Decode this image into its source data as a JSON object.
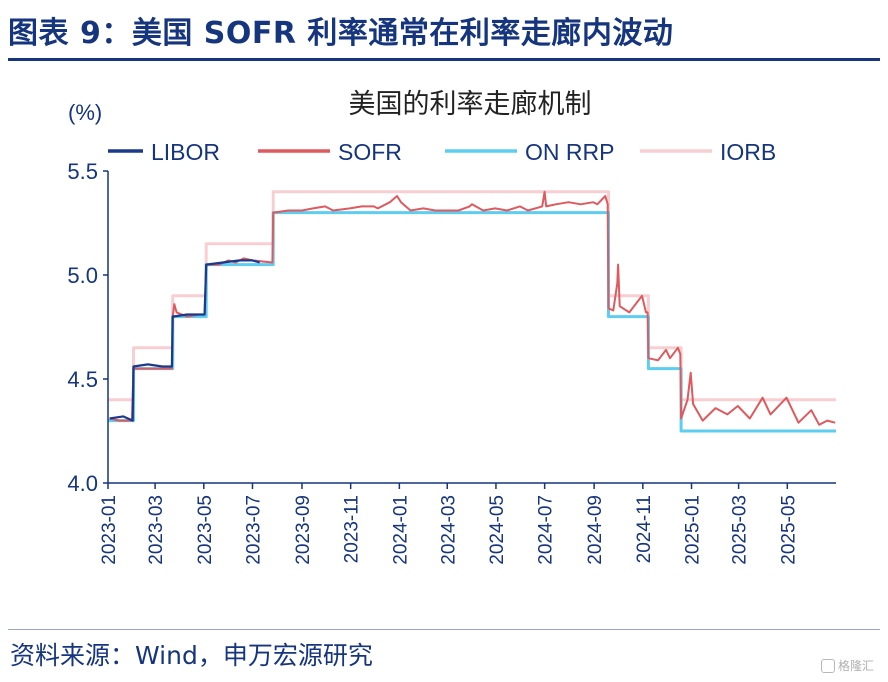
{
  "header": {
    "figure_title": "图表 9：美国 SOFR 利率通常在利率走廊内波动"
  },
  "footer": {
    "source": "资料来源：Wind，申万宏源研究",
    "watermark": "格隆汇"
  },
  "colors": {
    "libor": "#1b3a8c",
    "sofr": "#de5a5e",
    "onrrp": "#5dcdf2",
    "iorb": "#f7cfd2",
    "text": "#16357f"
  },
  "chart_data": {
    "type": "line",
    "title": "美国的利率走廊机制",
    "ylabel": "(%)",
    "xlabel": "",
    "ylim": [
      4.0,
      5.5
    ],
    "yticks": [
      "4.0",
      "4.5",
      "5.0",
      "5.5"
    ],
    "xlim": [
      "2023-01-01",
      "2025-07-01"
    ],
    "xticks": [
      "2023-01",
      "2023-03",
      "2023-05",
      "2023-07",
      "2023-09",
      "2023-11",
      "2024-01",
      "2024-03",
      "2024-05",
      "2024-07",
      "2024-09",
      "2024-11",
      "2025-01",
      "2025-03",
      "2025-05"
    ],
    "legend_position": "top",
    "series": [
      {
        "name": "LIBOR",
        "key": "libor",
        "step": false,
        "points": [
          [
            "2023-01-03",
            4.31
          ],
          [
            "2023-01-20",
            4.32
          ],
          [
            "2023-02-01",
            4.3
          ],
          [
            "2023-02-02",
            4.56
          ],
          [
            "2023-02-20",
            4.57
          ],
          [
            "2023-03-10",
            4.56
          ],
          [
            "2023-03-22",
            4.56
          ],
          [
            "2023-03-23",
            4.8
          ],
          [
            "2023-04-10",
            4.81
          ],
          [
            "2023-05-02",
            4.81
          ],
          [
            "2023-05-04",
            5.05
          ],
          [
            "2023-05-25",
            5.06
          ],
          [
            "2023-06-15",
            5.07
          ],
          [
            "2023-07-01",
            5.07
          ],
          [
            "2023-07-10",
            5.06
          ]
        ]
      },
      {
        "name": "SOFR",
        "key": "sofr",
        "step": false,
        "points": [
          [
            "2023-01-03",
            4.31
          ],
          [
            "2023-01-15",
            4.3
          ],
          [
            "2023-01-31",
            4.3
          ],
          [
            "2023-02-02",
            4.55
          ],
          [
            "2023-02-15",
            4.55
          ],
          [
            "2023-03-01",
            4.55
          ],
          [
            "2023-03-15",
            4.55
          ],
          [
            "2023-03-22",
            4.55
          ],
          [
            "2023-03-23",
            4.8
          ],
          [
            "2023-03-25",
            4.86
          ],
          [
            "2023-03-28",
            4.82
          ],
          [
            "2023-04-10",
            4.8
          ],
          [
            "2023-04-25",
            4.81
          ],
          [
            "2023-05-02",
            4.81
          ],
          [
            "2023-05-04",
            5.05
          ],
          [
            "2023-05-20",
            5.05
          ],
          [
            "2023-06-01",
            5.07
          ],
          [
            "2023-06-10",
            5.06
          ],
          [
            "2023-06-20",
            5.08
          ],
          [
            "2023-07-01",
            5.07
          ],
          [
            "2023-07-26",
            5.06
          ],
          [
            "2023-07-27",
            5.3
          ],
          [
            "2023-08-15",
            5.31
          ],
          [
            "2023-09-01",
            5.31
          ],
          [
            "2023-09-15",
            5.32
          ],
          [
            "2023-09-30",
            5.33
          ],
          [
            "2023-10-10",
            5.31
          ],
          [
            "2023-10-31",
            5.32
          ],
          [
            "2023-11-15",
            5.33
          ],
          [
            "2023-11-30",
            5.33
          ],
          [
            "2023-12-05",
            5.32
          ],
          [
            "2023-12-20",
            5.35
          ],
          [
            "2023-12-29",
            5.38
          ],
          [
            "2024-01-03",
            5.35
          ],
          [
            "2024-01-15",
            5.31
          ],
          [
            "2024-01-31",
            5.32
          ],
          [
            "2024-02-15",
            5.31
          ],
          [
            "2024-02-29",
            5.31
          ],
          [
            "2024-03-15",
            5.31
          ],
          [
            "2024-03-29",
            5.33
          ],
          [
            "2024-04-01",
            5.34
          ],
          [
            "2024-04-15",
            5.31
          ],
          [
            "2024-04-30",
            5.32
          ],
          [
            "2024-05-15",
            5.31
          ],
          [
            "2024-05-31",
            5.33
          ],
          [
            "2024-06-10",
            5.31
          ],
          [
            "2024-06-28",
            5.33
          ],
          [
            "2024-07-01",
            5.4
          ],
          [
            "2024-07-03",
            5.33
          ],
          [
            "2024-07-15",
            5.34
          ],
          [
            "2024-07-31",
            5.35
          ],
          [
            "2024-08-15",
            5.34
          ],
          [
            "2024-08-31",
            5.35
          ],
          [
            "2024-09-05",
            5.34
          ],
          [
            "2024-09-15",
            5.38
          ],
          [
            "2024-09-18",
            5.34
          ],
          [
            "2024-09-19",
            4.84
          ],
          [
            "2024-09-25",
            4.83
          ],
          [
            "2024-09-30",
            4.96
          ],
          [
            "2024-10-01",
            5.05
          ],
          [
            "2024-10-03",
            4.85
          ],
          [
            "2024-10-15",
            4.82
          ],
          [
            "2024-10-31",
            4.9
          ],
          [
            "2024-11-05",
            4.82
          ],
          [
            "2024-11-07",
            4.82
          ],
          [
            "2024-11-08",
            4.6
          ],
          [
            "2024-11-20",
            4.59
          ],
          [
            "2024-11-30",
            4.64
          ],
          [
            "2024-12-05",
            4.6
          ],
          [
            "2024-12-15",
            4.65
          ],
          [
            "2024-12-18",
            4.62
          ],
          [
            "2024-12-19",
            4.31
          ],
          [
            "2024-12-27",
            4.4
          ],
          [
            "2024-12-31",
            4.53
          ],
          [
            "2025-01-03",
            4.38
          ],
          [
            "2025-01-15",
            4.3
          ],
          [
            "2025-01-31",
            4.36
          ],
          [
            "2025-02-15",
            4.33
          ],
          [
            "2025-02-28",
            4.37
          ],
          [
            "2025-03-15",
            4.31
          ],
          [
            "2025-03-31",
            4.41
          ],
          [
            "2025-04-10",
            4.33
          ],
          [
            "2025-04-30",
            4.41
          ],
          [
            "2025-05-15",
            4.29
          ],
          [
            "2025-05-31",
            4.35
          ],
          [
            "2025-06-10",
            4.28
          ],
          [
            "2025-06-20",
            4.3
          ],
          [
            "2025-06-30",
            4.29
          ]
        ]
      },
      {
        "name": "ON RRP",
        "key": "onrrp",
        "step": true,
        "points": [
          [
            "2023-01-01",
            4.3
          ],
          [
            "2023-02-02",
            4.55
          ],
          [
            "2023-03-23",
            4.8
          ],
          [
            "2023-05-04",
            5.05
          ],
          [
            "2023-07-27",
            5.3
          ],
          [
            "2024-09-19",
            4.8
          ],
          [
            "2024-11-08",
            4.55
          ],
          [
            "2024-12-19",
            4.25
          ],
          [
            "2025-07-01",
            4.25
          ]
        ]
      },
      {
        "name": "IORB",
        "key": "iorb",
        "step": true,
        "points": [
          [
            "2023-01-01",
            4.4
          ],
          [
            "2023-02-02",
            4.65
          ],
          [
            "2023-03-23",
            4.9
          ],
          [
            "2023-05-04",
            5.15
          ],
          [
            "2023-07-27",
            5.4
          ],
          [
            "2024-09-19",
            4.9
          ],
          [
            "2024-11-08",
            4.65
          ],
          [
            "2024-12-19",
            4.4
          ],
          [
            "2025-07-01",
            4.4
          ]
        ]
      }
    ]
  }
}
